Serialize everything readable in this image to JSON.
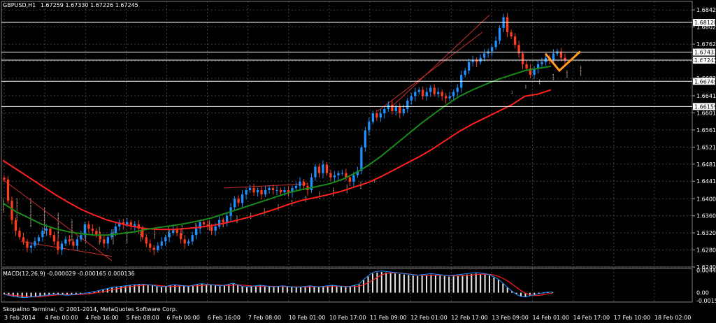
{
  "header": {
    "symbol": "GBPUSD,H1",
    "prices": "1.67259 1.67330 1.67226 1.67245",
    "macd_label": "MACD(12,26,9) -0.000029 -0.000165 0.000136"
  },
  "copyright": "Skopalino Terminal, © 2001-2014, MetaQuotes Software Corp.",
  "colors": {
    "background": "#000000",
    "grid": "#505050",
    "bull": "#1e90ff",
    "bear": "#ff3b1e",
    "ma_fast": "#ff2020",
    "ma_slow": "#1a8a1a",
    "cloud": "#ffd0b0",
    "annotation": "#ff9a1e"
  },
  "chart_data": [
    {
      "type": "line",
      "title": "",
      "series_name": "GBPUSD,H1",
      "x_ticks": [
        "3 Feb 2014",
        "4 Feb 00:00",
        "4 Feb 16:00",
        "5 Feb 08:00",
        "6 Feb 00:00",
        "6 Feb 16:00",
        "7 Feb 08:00",
        "10 Feb 01:00",
        "10 Feb 17:00",
        "11 Feb 09:00",
        "12 Feb 01:00",
        "12 Feb 17:00",
        "13 Feb 09:00",
        "14 Feb 01:00",
        "14 Feb 17:00",
        "17 Feb 10:00",
        "18 Feb 02:00"
      ],
      "y_ticks": [
        "1.68420",
        "1.68020",
        "1.67620",
        "1.67220",
        "1.66820",
        "1.66410",
        "1.66010",
        "1.65610",
        "1.65210",
        "1.64810",
        "1.64410",
        "1.64000",
        "1.63600",
        "1.63200",
        "1.62800",
        "1.62400"
      ],
      "ylim": [
        1.624,
        1.6862
      ],
      "horizontal_levels": [
        "1.68128",
        "1.67433",
        "1.67245",
        "1.66749",
        "1.66159"
      ],
      "close": [
        1.6445,
        1.6395,
        1.635,
        1.6325,
        1.631,
        1.63,
        1.6285,
        1.629,
        1.63,
        1.631,
        1.6325,
        1.633,
        1.6315,
        1.63,
        1.628,
        1.6295,
        1.6305,
        1.63,
        1.629,
        1.6305,
        1.6315,
        1.634,
        1.633,
        1.6325,
        1.6315,
        1.6305,
        1.6295,
        1.631,
        1.632,
        1.6335,
        1.6345,
        1.634,
        1.6345,
        1.6335,
        1.634,
        1.633,
        1.631,
        1.6295,
        1.6285,
        1.628,
        1.629,
        1.63,
        1.631,
        1.632,
        1.633,
        1.632,
        1.6305,
        1.6295,
        1.63,
        1.6315,
        1.633,
        1.6345,
        1.634,
        1.6335,
        1.6325,
        1.6335,
        1.635,
        1.6345,
        1.636,
        1.638,
        1.64,
        1.639,
        1.641,
        1.642,
        1.6425,
        1.6415,
        1.642,
        1.641,
        1.642,
        1.6425,
        1.642,
        1.642,
        1.6415,
        1.642,
        1.6415,
        1.6425,
        1.643,
        1.644,
        1.643,
        1.642,
        1.645,
        1.6475,
        1.646,
        1.648,
        1.646,
        1.645,
        1.6455,
        1.646,
        1.646,
        1.645,
        1.644,
        1.6455,
        1.6465,
        1.652,
        1.656,
        1.658,
        1.66,
        1.659,
        1.66,
        1.661,
        1.662,
        1.6605,
        1.6615,
        1.66,
        1.661,
        1.663,
        1.664,
        1.665,
        1.6655,
        1.664,
        1.665,
        1.666,
        1.6645,
        1.665,
        1.664,
        1.6635,
        1.664,
        1.665,
        1.666,
        1.669,
        1.67,
        1.672,
        1.6725,
        1.672,
        1.673,
        1.674,
        1.6745,
        1.6755,
        1.677,
        1.68,
        1.6825,
        1.679,
        1.678,
        1.676,
        1.674,
        1.6715,
        1.6705,
        1.669,
        1.6705,
        1.6715,
        1.672,
        1.673,
        1.6725,
        1.674,
        1.6745,
        1.673,
        1.6725
      ],
      "ma_fast": [
        1.649,
        1.647,
        1.645,
        1.643,
        1.641,
        1.6392,
        1.6375,
        1.6362,
        1.635,
        1.6342,
        1.6335,
        1.633,
        1.6328,
        1.6328,
        1.633,
        1.6333,
        1.6337,
        1.6343,
        1.635,
        1.6358,
        1.6367,
        1.6377,
        1.6388,
        1.6397,
        1.6403,
        1.641,
        1.6418,
        1.6428,
        1.6438,
        1.6452,
        1.6468,
        1.6484,
        1.65,
        1.6518,
        1.6538,
        1.6558,
        1.6575,
        1.659,
        1.6605,
        1.662,
        1.664,
        1.6645,
        1.6655
      ],
      "ma_slow": [
        1.639,
        1.637,
        1.6355,
        1.634,
        1.633,
        1.6323,
        1.6318,
        1.6315,
        1.6315,
        1.6318,
        1.6322,
        1.6328,
        1.6333,
        1.6337,
        1.6342,
        1.6348,
        1.6355,
        1.6365,
        1.6375,
        1.6385,
        1.6395,
        1.6405,
        1.6415,
        1.6422,
        1.6428,
        1.6435,
        1.6445,
        1.646,
        1.6478,
        1.65,
        1.6525,
        1.655,
        1.6575,
        1.6598,
        1.662,
        1.664,
        1.6655,
        1.6668,
        1.668,
        1.669,
        1.67,
        1.6705,
        1.671
      ]
    },
    {
      "type": "bar",
      "title": "",
      "series_name": "MACD(12,26,9)",
      "y_ticks": [
        "0.00443",
        "0.00",
        "-0.00155"
      ],
      "ylim": [
        -0.00185,
        0.0048
      ],
      "histogram": [
        -0.0003,
        -0.0005,
        -0.0007,
        -0.0008,
        -0.0009,
        -0.0009,
        -0.0008,
        -0.0007,
        -0.0006,
        -0.0005,
        -0.0004,
        -0.0003,
        -0.0003,
        -0.0004,
        -0.0005,
        -0.0004,
        -0.0003,
        -0.0002,
        -0.0001,
        0.0,
        0.0002,
        0.0004,
        0.0006,
        0.0008,
        0.001,
        0.0011,
        0.0012,
        0.0013,
        0.0014,
        0.0015,
        0.0016,
        0.0016,
        0.0015,
        0.0014,
        0.0012,
        0.0011,
        0.0012,
        0.0014,
        0.0015,
        0.0014,
        0.0013,
        0.0012,
        0.0014,
        0.0016,
        0.0017,
        0.0016,
        0.0015,
        0.0014,
        0.0013,
        0.0014,
        0.0016,
        0.0018,
        0.0015,
        0.0012,
        0.0011,
        0.0012,
        0.0013,
        0.0014,
        0.0013,
        0.0012,
        0.0011,
        0.0012,
        0.0013,
        0.0012,
        0.0011,
        0.001,
        0.0011,
        0.0012,
        0.0013,
        0.0012,
        0.0011,
        0.0012,
        0.0013,
        0.0014,
        0.0013,
        0.0012,
        0.0011,
        0.0012,
        0.0014,
        0.0016,
        0.0025,
        0.0032,
        0.0038,
        0.004,
        0.0041,
        0.004,
        0.0039,
        0.0038,
        0.0037,
        0.0036,
        0.0035,
        0.0034,
        0.0033,
        0.0034,
        0.0035,
        0.0036,
        0.0035,
        0.0034,
        0.0033,
        0.0032,
        0.0033,
        0.0034,
        0.0035,
        0.0036,
        0.0037,
        0.0038,
        0.0037,
        0.0036,
        0.0034,
        0.003,
        0.0025,
        0.0018,
        0.001,
        0.0003,
        -0.0003,
        -0.0007,
        -0.0008,
        -0.0006,
        -0.0004,
        -0.0002,
        0.0,
        0.0001,
        0.0001
      ]
    }
  ]
}
